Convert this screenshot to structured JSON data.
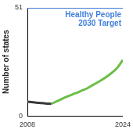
{
  "chart_data": {
    "type": "line",
    "y_label": "Number of states",
    "x": [
      2008,
      2009,
      2010,
      2011,
      2012,
      2013,
      2014,
      2015,
      2016,
      2017,
      2018,
      2019,
      2020,
      2021,
      2022,
      2023,
      2024
    ],
    "series": [
      {
        "color": "#3a3a3a",
        "values": [
          6.7,
          6.4,
          6.2,
          5.9,
          5.7,
          null,
          null,
          null,
          null,
          null,
          null,
          null,
          null,
          null,
          null,
          null,
          null
        ]
      },
      {
        "color": "#6cbf4a",
        "values": [
          null,
          null,
          null,
          null,
          5.7,
          7.0,
          8.3,
          9.5,
          10.6,
          11.8,
          13.0,
          14.6,
          16.2,
          18.0,
          20.0,
          22.5,
          26.4
        ]
      }
    ],
    "target": {
      "value": 51,
      "label": "Healthy People 2030 Target",
      "color": "#3f7fdc"
    },
    "xlim": [
      2008,
      2024
    ],
    "xticks": [
      2008,
      2024
    ],
    "ylim": [
      0,
      51
    ],
    "yticks": [
      0,
      51
    ],
    "grid": false
  }
}
